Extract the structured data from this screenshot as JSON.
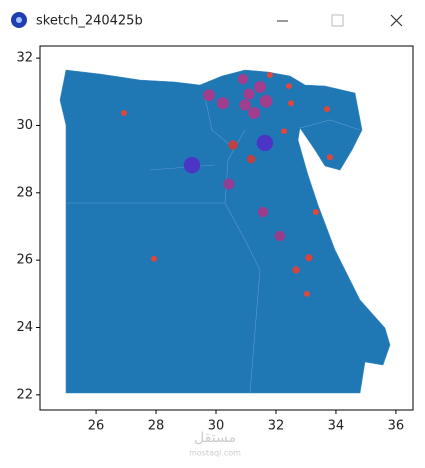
{
  "window": {
    "title": "sketch_240425b"
  },
  "watermark": {
    "arabic": "مستقل",
    "latin": "mostaql.com"
  },
  "chart_data": {
    "type": "scatter",
    "x": [
      26.93,
      29.77,
      30.23,
      30.9,
      31.1,
      30.97,
      31.47,
      31.27,
      31.67,
      31.8,
      32.43,
      32.5,
      33.7,
      32.27,
      31.63,
      29.2,
      30.57,
      31.17,
      33.8,
      30.43,
      31.57,
      33.33,
      32.13,
      33.1,
      32.67,
      27.93,
      33.03
    ],
    "y": [
      30.37,
      30.9,
      30.66,
      31.38,
      30.93,
      30.61,
      31.14,
      30.37,
      30.72,
      31.5,
      31.17,
      30.66,
      30.49,
      29.83,
      29.48,
      28.82,
      29.42,
      29.0,
      29.06,
      28.26,
      27.43,
      27.43,
      26.72,
      26.07,
      25.71,
      26.04,
      25.0
    ],
    "sizes": [
      20,
      80,
      80,
      60,
      70,
      70,
      80,
      80,
      90,
      20,
      20,
      20,
      20,
      20,
      150,
      150,
      50,
      40,
      20,
      70,
      60,
      20,
      60,
      30,
      30,
      20,
      20
    ],
    "colors": [
      "#e0463a",
      "#a33d8d",
      "#a33d8d",
      "#a33d8d",
      "#a33d8d",
      "#a33d8d",
      "#a33d8d",
      "#a33d8d",
      "#a33d8d",
      "#e0463a",
      "#e0463a",
      "#e0463a",
      "#e0463a",
      "#e0463a",
      "#4c34c4",
      "#4c34c4",
      "#c2403f",
      "#c2403f",
      "#e0463a",
      "#923e95",
      "#9b3b8c",
      "#e0463a",
      "#9b3b8c",
      "#d5443f",
      "#d5443f",
      "#e0463a",
      "#e0463a"
    ],
    "xlim": [
      24.13,
      36.57
    ],
    "ylim": [
      21.55,
      32.36
    ],
    "xticks": [
      26,
      28,
      30,
      32,
      34,
      36
    ],
    "yticks": [
      22,
      24,
      26,
      28,
      30,
      32
    ]
  }
}
